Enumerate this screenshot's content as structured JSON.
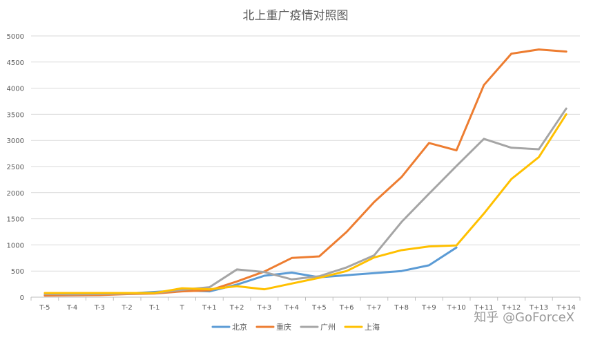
{
  "chart_data": {
    "type": "line",
    "title": "北上重广疫情对照图",
    "categories": [
      "T-5",
      "T-4",
      "T-3",
      "T-2",
      "T-1",
      "T",
      "T+1",
      "T+2",
      "T+3",
      "T+4",
      "T+5",
      "T+6",
      "T+7",
      "T+8",
      "T+9",
      "T+10",
      "T+11",
      "T+12",
      "T+13",
      "T+14"
    ],
    "ylim": [
      0,
      5000
    ],
    "yticks": [
      0,
      500,
      1000,
      1500,
      2000,
      2500,
      3000,
      3500,
      4000,
      4500,
      5000
    ],
    "grid": true,
    "legend_position": "bottom",
    "series": [
      {
        "name": "北京",
        "color": "#5b9bd5",
        "values": [
          40,
          50,
          55,
          70,
          100,
          130,
          110,
          240,
          410,
          470,
          380,
          420,
          460,
          500,
          610,
          950,
          null,
          null,
          null,
          null
        ]
      },
      {
        "name": "重庆",
        "color": "#ed7d31",
        "values": [
          30,
          35,
          40,
          60,
          70,
          110,
          130,
          300,
          490,
          750,
          780,
          1250,
          1820,
          2300,
          2950,
          2810,
          4060,
          4660,
          4740,
          4700
        ]
      },
      {
        "name": "广州",
        "color": "#a5a5a5",
        "values": [
          60,
          55,
          60,
          70,
          80,
          140,
          190,
          530,
          480,
          340,
          400,
          570,
          800,
          1440,
          1980,
          2510,
          3030,
          2860,
          2830,
          3610
        ]
      },
      {
        "name": "上海",
        "color": "#ffc000",
        "values": [
          80,
          80,
          80,
          80,
          80,
          170,
          150,
          210,
          150,
          260,
          370,
          500,
          760,
          900,
          970,
          990,
          1600,
          2260,
          2680,
          3500
        ]
      }
    ]
  },
  "watermark": "知乎 @GoForceX"
}
